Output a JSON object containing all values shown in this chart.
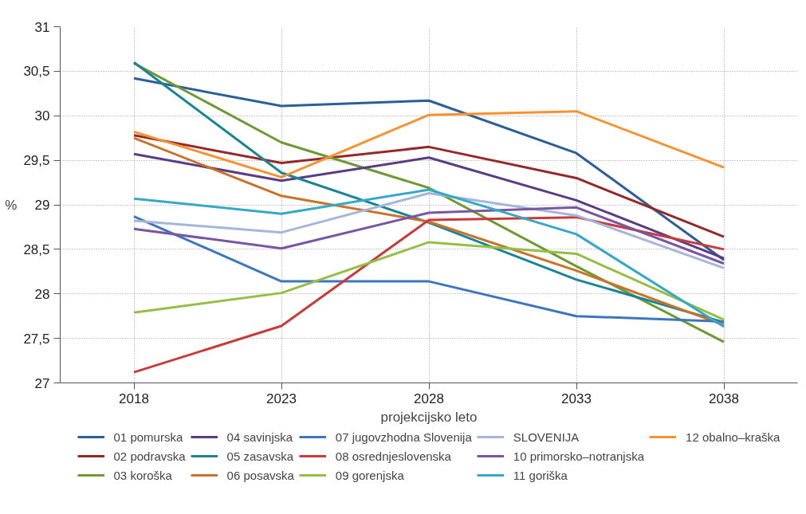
{
  "chart_data": {
    "type": "line",
    "xlabel": "projekcijsko leto",
    "ylabel": "%",
    "x": [
      2018,
      2023,
      2028,
      2033,
      2038
    ],
    "xlim": [
      2015.5,
      2040.5
    ],
    "ylim": [
      27,
      31
    ],
    "xticks": [
      2018,
      2023,
      2028,
      2033,
      2038
    ],
    "yticks": [
      27,
      {
        "value": 27.5,
        "label": "27,5"
      },
      28,
      {
        "value": 28.5,
        "label": "28,5"
      },
      29,
      {
        "value": 29.5,
        "label": "29,5"
      },
      30,
      {
        "value": 30.5,
        "label": "30,5"
      },
      31
    ],
    "grid": true,
    "legend": "bottom",
    "line_style": "solid",
    "marker": "none",
    "series": [
      {
        "name": "01 pomurska",
        "color": "#2a5f98",
        "values": [
          30.42,
          30.11,
          30.17,
          29.58,
          28.38
        ]
      },
      {
        "name": "02 podravska",
        "color": "#97282a",
        "values": [
          29.78,
          29.47,
          29.65,
          29.3,
          28.64
        ]
      },
      {
        "name": "03 koroška",
        "color": "#6e9a34",
        "values": [
          30.59,
          29.7,
          29.19,
          28.31,
          27.46
        ]
      },
      {
        "name": "04 savinjska",
        "color": "#5a3c82",
        "values": [
          29.57,
          29.27,
          29.53,
          29.05,
          28.4
        ]
      },
      {
        "name": "05 zasavska",
        "color": "#1a8595",
        "values": [
          30.6,
          29.36,
          28.8,
          28.16,
          27.68
        ]
      },
      {
        "name": "06 posavska",
        "color": "#c87328",
        "values": [
          29.75,
          29.1,
          28.81,
          28.26,
          27.65
        ]
      },
      {
        "name": "07 jugovzhodna Slovenija",
        "color": "#3b76bf",
        "values": [
          28.87,
          28.14,
          28.14,
          27.75,
          27.69
        ]
      },
      {
        "name": "08 osrednjeslovenska",
        "color": "#c93a3a",
        "values": [
          27.12,
          27.64,
          28.83,
          28.86,
          28.5
        ]
      },
      {
        "name": "09 gorenjska",
        "color": "#95bf44",
        "values": [
          27.79,
          28.01,
          28.58,
          28.45,
          27.71
        ]
      },
      {
        "name": "SLOVENIJA",
        "color": "#a5b6d8",
        "values": [
          28.82,
          28.69,
          29.13,
          28.88,
          28.29
        ]
      },
      {
        "name": "10 primorsko–notranjska",
        "color": "#7a55a2",
        "values": [
          28.73,
          28.51,
          28.91,
          28.97,
          28.34
        ]
      },
      {
        "name": "11 goriška",
        "color": "#35a9c6",
        "values": [
          29.07,
          28.9,
          29.17,
          28.67,
          27.63
        ]
      },
      {
        "name": "12 obalno–kraška",
        "color": "#f7922e",
        "values": [
          29.82,
          29.31,
          30.01,
          30.05,
          29.42
        ]
      }
    ]
  }
}
